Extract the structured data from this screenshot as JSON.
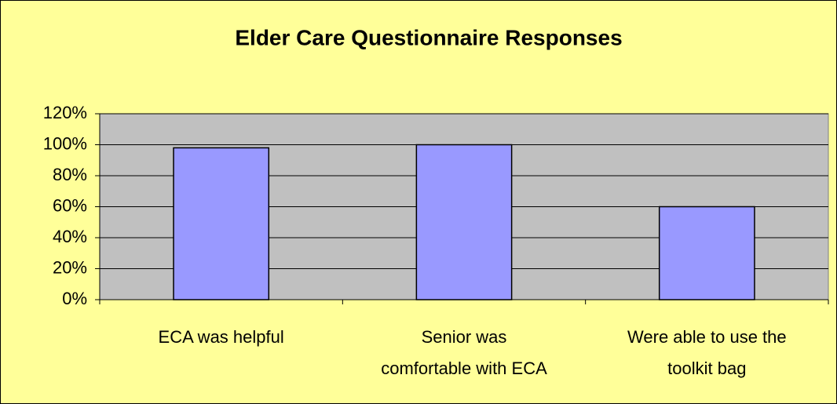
{
  "chart_data": {
    "type": "bar",
    "title": "Elder Care Questionnaire Responses",
    "categories": [
      "ECA was helpful",
      "Senior was comfortable with ECA",
      "Were able to use the toolkit bag"
    ],
    "values": [
      98,
      100,
      60
    ],
    "color": "#9999ff",
    "ylim": [
      0,
      120
    ],
    "yticks": [
      {
        "value": 0,
        "label": "0%"
      },
      {
        "value": 20,
        "label": "20%"
      },
      {
        "value": 40,
        "label": "40%"
      },
      {
        "value": 60,
        "label": "60%"
      },
      {
        "value": 80,
        "label": "80%"
      },
      {
        "value": 100,
        "label": "100%"
      },
      {
        "value": 120,
        "label": "120%"
      }
    ],
    "grid": true
  }
}
